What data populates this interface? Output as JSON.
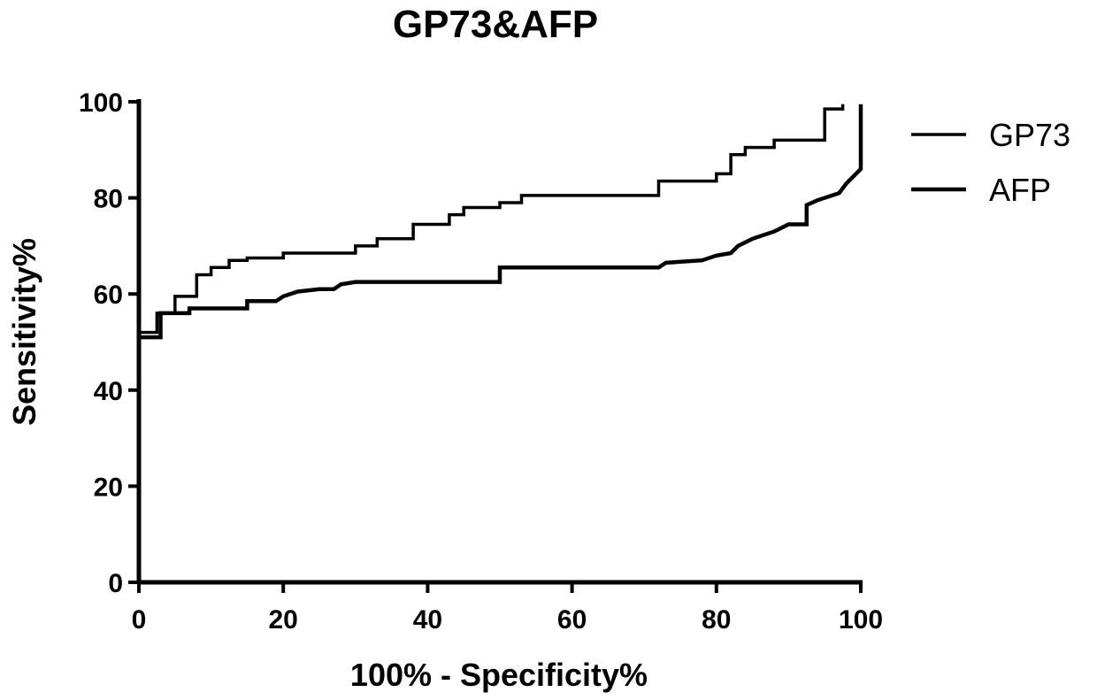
{
  "chart_data": {
    "type": "line",
    "title": "GP73&AFP",
    "xlabel": "100% - Specificity%",
    "ylabel": "Sensitivity%",
    "xlim": [
      0,
      100
    ],
    "ylim": [
      0,
      100
    ],
    "xticks": [
      "0",
      "20",
      "40",
      "60",
      "80",
      "100"
    ],
    "yticks": [
      "0",
      "20",
      "40",
      "60",
      "80",
      "100"
    ],
    "legend_position": "top-right",
    "series": [
      {
        "name": "GP73",
        "color": "#000000",
        "points": [
          [
            0,
            52
          ],
          [
            2.5,
            52
          ],
          [
            2.5,
            56
          ],
          [
            5,
            56
          ],
          [
            5,
            59.5
          ],
          [
            8,
            59.5
          ],
          [
            8,
            64
          ],
          [
            10,
            64
          ],
          [
            10,
            65.5
          ],
          [
            12.5,
            65.5
          ],
          [
            12.5,
            67
          ],
          [
            15,
            67
          ],
          [
            15,
            67.5
          ],
          [
            20,
            67.5
          ],
          [
            20,
            68.5
          ],
          [
            30,
            68.5
          ],
          [
            30,
            70
          ],
          [
            33,
            70
          ],
          [
            33,
            71.5
          ],
          [
            38,
            71.5
          ],
          [
            38,
            74.5
          ],
          [
            43,
            74.5
          ],
          [
            43,
            76.5
          ],
          [
            45,
            76.5
          ],
          [
            45,
            78
          ],
          [
            50,
            78
          ],
          [
            50,
            79
          ],
          [
            53,
            79
          ],
          [
            53,
            80.5
          ],
          [
            72,
            80.5
          ],
          [
            72,
            83.5
          ],
          [
            80,
            83.5
          ],
          [
            80,
            85
          ],
          [
            82,
            85
          ],
          [
            82,
            89
          ],
          [
            84,
            89
          ],
          [
            84,
            90.5
          ],
          [
            88,
            90.5
          ],
          [
            88,
            92
          ],
          [
            95,
            92
          ],
          [
            95,
            98.5
          ],
          [
            97.5,
            98.5
          ],
          [
            97.5,
            99.5
          ]
        ]
      },
      {
        "name": "AFP",
        "color": "#000000",
        "points": [
          [
            0,
            51
          ],
          [
            3,
            51
          ],
          [
            3,
            56
          ],
          [
            7,
            56
          ],
          [
            7,
            57
          ],
          [
            15,
            57
          ],
          [
            15,
            58.5
          ],
          [
            19,
            58.5
          ],
          [
            20,
            59.5
          ],
          [
            22,
            60.5
          ],
          [
            25,
            61
          ],
          [
            27,
            61
          ],
          [
            28,
            62
          ],
          [
            30,
            62.5
          ],
          [
            50,
            62.5
          ],
          [
            50,
            65.5
          ],
          [
            72,
            65.5
          ],
          [
            73,
            66.5
          ],
          [
            78,
            67
          ],
          [
            80,
            68
          ],
          [
            82,
            68.5
          ],
          [
            83,
            70
          ],
          [
            85,
            71.5
          ],
          [
            88,
            73
          ],
          [
            90,
            74.5
          ],
          [
            92.5,
            74.5
          ],
          [
            92.5,
            78.5
          ],
          [
            94,
            79.5
          ],
          [
            97,
            81
          ],
          [
            98,
            83
          ],
          [
            100,
            86
          ],
          [
            100,
            99.5
          ]
        ]
      }
    ]
  }
}
